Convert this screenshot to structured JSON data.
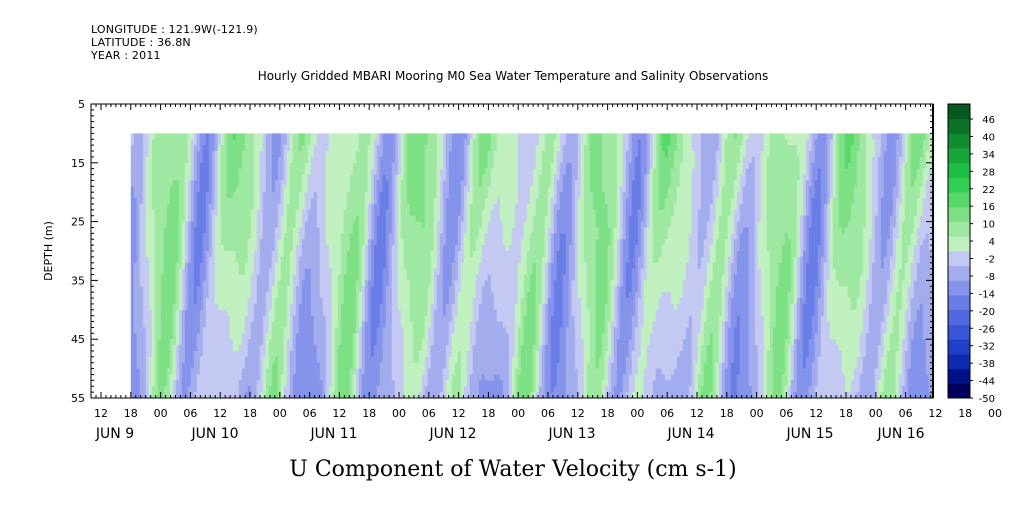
{
  "header": {
    "longitude": "LONGITUDE : 121.9W(-121.9)",
    "latitude": "LATITUDE : 36.8N",
    "year": "YEAR : 2011"
  },
  "chart_data": {
    "type": "heatmap",
    "title": "Hourly Gridded MBARI Mooring M0 Sea Water Temperature and Salinity Observations",
    "xlabel": "U Component of Water Velocity (cm s-1)",
    "ylabel": "DEPTH (m)",
    "ylim": [
      55,
      5
    ],
    "y_ticks": [
      5,
      15,
      25,
      35,
      45,
      55
    ],
    "x_hour_ticks": [
      "12",
      "18",
      "00",
      "06",
      "12",
      "18",
      "00",
      "06",
      "12",
      "18",
      "00",
      "06",
      "12",
      "18",
      "00",
      "06",
      "12",
      "18",
      "00",
      "06",
      "12",
      "18",
      "00",
      "06",
      "12",
      "18",
      "00",
      "06",
      "12",
      "18",
      "00",
      "06"
    ],
    "x_day_labels": [
      "JUN  9",
      "JUN 10",
      "JUN 11",
      "JUN 12",
      "JUN 13",
      "JUN 14",
      "JUN 15",
      "JUN 16"
    ],
    "data_range": {
      "start_hour": 18,
      "depth_min": 10,
      "depth_max": 55
    },
    "colorbar": {
      "levels": [
        -50,
        -44,
        -38,
        -32,
        -26,
        -20,
        -14,
        -8,
        -2,
        4,
        10,
        16,
        22,
        28,
        34,
        40,
        46
      ],
      "colors": [
        "#00005a",
        "#00118a",
        "#0d2bb0",
        "#2140c8",
        "#3956d8",
        "#5068e0",
        "#6a7de6",
        "#8594ea",
        "#a3adee",
        "#c4c9f2",
        "#c0f0c0",
        "#9fe8a2",
        "#7de085",
        "#59d86a",
        "#33cf52",
        "#1dbe44",
        "#17a63a",
        "#118c30",
        "#0b7327",
        "#075a1e"
      ]
    }
  }
}
